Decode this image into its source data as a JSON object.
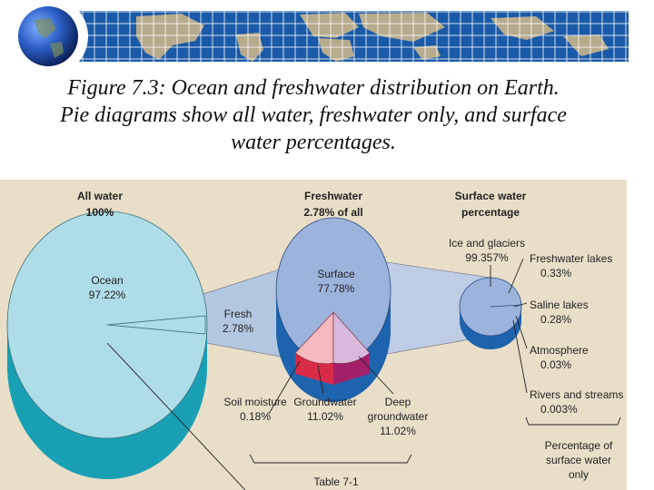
{
  "caption": {
    "line1": "Figure 7.3: Ocean and freshwater distribution on Earth.",
    "line2": "Pie diagrams show all water, freshwater only, and surface",
    "line3": "water percentages."
  },
  "banner": {
    "icon": "globe-icon",
    "map": "world-map-grid"
  },
  "colors": {
    "panel": "#e9dfc9",
    "ocean_top": "#aedde7",
    "ocean_side": "#1aa0b5",
    "fresh_top": "#9cb3dc",
    "fresh_side": "#1e63ad",
    "soil": "#b8182c",
    "ground": "#f4b8be",
    "deep": "#d7b9dc",
    "banner": "#1a5aa8"
  },
  "chart_data": [
    {
      "type": "pie",
      "title": "All water",
      "subtitle": "100%",
      "slices": [
        {
          "label": "Ocean",
          "value": 97.22,
          "value_label": "97.22%"
        },
        {
          "label": "Fresh",
          "value": 2.78,
          "value_label": "2.78%"
        }
      ]
    },
    {
      "type": "pie",
      "title": "Freshwater",
      "subtitle": "2.78% of all",
      "slices": [
        {
          "label": "Surface",
          "value": 77.78,
          "value_label": "77.78%"
        },
        {
          "label": "Soil moisture",
          "value": 0.18,
          "value_label": "0.18%"
        },
        {
          "label": "Groundwater",
          "value": 11.02,
          "value_label": "11.02%"
        },
        {
          "label": "Deep",
          "label2": "groundwater",
          "value": 11.02,
          "value_label": "11.02%"
        }
      ]
    },
    {
      "type": "pie",
      "title": "Surface water",
      "subtitle": "percentage",
      "slices": [
        {
          "label": "Ice and glaciers",
          "value": 99.357,
          "value_label": "99.357%"
        },
        {
          "label": "Freshwater lakes",
          "value": 0.33,
          "value_label": "0.33%"
        },
        {
          "label": "Saline lakes",
          "value": 0.28,
          "value_label": "0.28%"
        },
        {
          "label": "Atmosphere",
          "value": 0.03,
          "value_label": "0.03%"
        },
        {
          "label": "Rivers and streams",
          "value": 0.003,
          "value_label": "0.003%"
        }
      ],
      "annotation": [
        "Percentage of",
        "surface water",
        "only"
      ]
    }
  ],
  "table_ref": "Table 7-1"
}
